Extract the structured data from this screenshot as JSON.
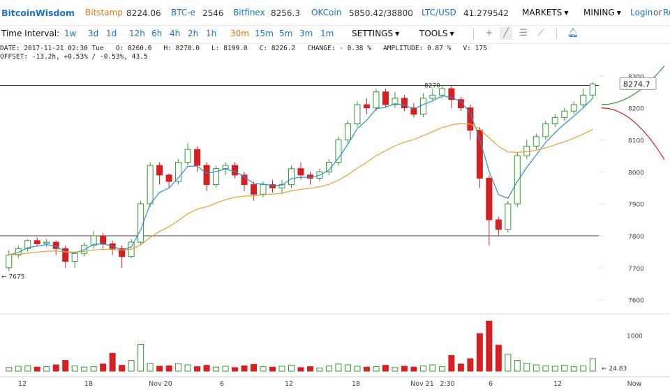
{
  "header": {
    "logo": "BitcoinWisdom",
    "exchanges": [
      {
        "name": "Bitstamp",
        "price": "8224.06"
      },
      {
        "name": "BTC-e",
        "price": "2546"
      },
      {
        "name": "Bitfinex",
        "price": "8256.3"
      },
      {
        "name": "OKCoin",
        "price": "5850.42/38800"
      },
      {
        "name": "LTC/USD",
        "price": "41.279542"
      }
    ],
    "menus": {
      "markets": "MARKETS",
      "mining": "MINING"
    },
    "login": "Login",
    "or": "or",
    "register": "Re"
  },
  "toolbar": {
    "label": "Time Interval:",
    "intervals": [
      "1w",
      "3d",
      "1d",
      "12h",
      "6h",
      "4h",
      "2h",
      "1h",
      "30m",
      "15m",
      "5m",
      "3m",
      "1m"
    ],
    "selected": "30m",
    "settings": "SETTINGS",
    "tools": "TOOLS",
    "icons": [
      "plus-icon",
      "line-draw-icon",
      "parallel-lines-icon",
      "fib-fan-icon",
      "alert-bell-icon"
    ]
  },
  "info": {
    "line1": "DATE: 2017-11-21 02:30 Tue   O: 8260.0   H: 8270.0   L: 8199.0   C: 8226.2   CHANGE: - 0.38 %   AMPLITUDE: 0.87 %   V: 175",
    "line2": "OFFSET: -13.2h, +0.53% / -0.53%, 43.5"
  },
  "colors": {
    "up": "#2e9a2e",
    "down": "#d42020",
    "ema_fast": "#2a8fd0",
    "ema_slow": "#e8a030",
    "accent": "#1a73c9",
    "orange": "#e07a10"
  },
  "chart_data": {
    "type": "candlestick",
    "y_ticks": [
      "8300",
      "8200",
      "8100",
      "8000",
      "7900",
      "7800",
      "7700",
      "7600"
    ],
    "ylim": [
      7560,
      8330
    ],
    "h_lines": [
      8270,
      7800
    ],
    "current_price": "8274.7",
    "high_label": "8270",
    "low_label": "← 7675",
    "volume_ticks": [
      "1000"
    ],
    "volume_last": "← 24.83",
    "x_labels": [
      "12",
      "18",
      "Nov 20",
      "6",
      "12",
      "18",
      "Nov 21",
      "2:30",
      "6",
      "12",
      "Now"
    ],
    "candles_approx": [
      [
        7700,
        7740,
        7690,
        7755
      ],
      [
        7740,
        7760,
        7730,
        7770
      ],
      [
        7760,
        7785,
        7750,
        7790
      ],
      [
        7785,
        7775,
        7765,
        7795
      ],
      [
        7775,
        7780,
        7765,
        7790
      ],
      [
        7780,
        7760,
        7740,
        7785
      ],
      [
        7760,
        7720,
        7700,
        7770
      ],
      [
        7720,
        7745,
        7700,
        7750
      ],
      [
        7745,
        7770,
        7735,
        7780
      ],
      [
        7770,
        7800,
        7760,
        7815
      ],
      [
        7800,
        7775,
        7760,
        7810
      ],
      [
        7775,
        7760,
        7740,
        7785
      ],
      [
        7760,
        7735,
        7700,
        7770
      ],
      [
        7735,
        7780,
        7730,
        7790
      ],
      [
        7780,
        7900,
        7770,
        7910
      ],
      [
        7900,
        8020,
        7890,
        8030
      ],
      [
        8020,
        7990,
        7960,
        8030
      ],
      [
        7990,
        7970,
        7950,
        7995
      ],
      [
        7970,
        8030,
        7960,
        8040
      ],
      [
        8030,
        8070,
        8020,
        8090
      ],
      [
        8070,
        8020,
        8000,
        8080
      ],
      [
        8020,
        7960,
        7940,
        8030
      ],
      [
        7960,
        8010,
        7950,
        8020
      ],
      [
        8010,
        8020,
        7990,
        8030
      ],
      [
        8020,
        7990,
        7980,
        8030
      ],
      [
        7990,
        7960,
        7940,
        8000
      ],
      [
        7960,
        7930,
        7910,
        7970
      ],
      [
        7930,
        7960,
        7920,
        7970
      ],
      [
        7960,
        7950,
        7935,
        7975
      ],
      [
        7950,
        7960,
        7930,
        7975
      ],
      [
        7960,
        8010,
        7950,
        8020
      ],
      [
        8010,
        7990,
        7975,
        8030
      ],
      [
        7990,
        7980,
        7960,
        8000
      ],
      [
        7980,
        8000,
        7970,
        8010
      ],
      [
        8000,
        8030,
        7990,
        8040
      ],
      [
        8030,
        8100,
        8020,
        8110
      ],
      [
        8100,
        8150,
        8090,
        8160
      ],
      [
        8150,
        8210,
        8140,
        8220
      ],
      [
        8210,
        8200,
        8180,
        8230
      ],
      [
        8200,
        8250,
        8190,
        8260
      ],
      [
        8250,
        8210,
        8200,
        8260
      ],
      [
        8210,
        8230,
        8200,
        8250
      ],
      [
        8230,
        8200,
        8190,
        8240
      ],
      [
        8200,
        8180,
        8170,
        8215
      ],
      [
        8180,
        8230,
        8170,
        8245
      ],
      [
        8230,
        8240,
        8220,
        8260
      ],
      [
        8240,
        8260,
        8230,
        8270
      ],
      [
        8260,
        8226,
        8199,
        8270
      ],
      [
        8226,
        8200,
        8190,
        8235
      ],
      [
        8200,
        8130,
        8100,
        8210
      ],
      [
        8130,
        7980,
        7950,
        8140
      ],
      [
        7980,
        7850,
        7770,
        7990
      ],
      [
        7850,
        7820,
        7800,
        7860
      ],
      [
        7820,
        7900,
        7810,
        7910
      ],
      [
        7900,
        8050,
        7890,
        8060
      ],
      [
        8050,
        8080,
        8040,
        8100
      ],
      [
        8080,
        8110,
        8070,
        8120
      ],
      [
        8110,
        8150,
        8100,
        8160
      ],
      [
        8150,
        8170,
        8140,
        8180
      ],
      [
        8170,
        8190,
        8160,
        8200
      ],
      [
        8190,
        8210,
        8180,
        8220
      ],
      [
        8210,
        8240,
        8200,
        8260
      ],
      [
        8240,
        8275,
        8230,
        8280
      ]
    ],
    "volumes_approx": [
      40,
      55,
      60,
      45,
      50,
      70,
      120,
      60,
      45,
      50,
      80,
      200,
      65,
      120,
      300,
      90,
      55,
      60,
      85,
      70,
      50,
      65,
      45,
      55,
      40,
      60,
      75,
      50,
      45,
      55,
      65,
      40,
      50,
      35,
      60,
      80,
      70,
      55,
      45,
      50,
      65,
      40,
      55,
      45,
      60,
      70,
      50,
      175,
      80,
      140,
      420,
      560,
      290,
      190,
      120,
      90,
      70,
      60,
      55,
      65,
      50,
      60,
      140
    ]
  }
}
